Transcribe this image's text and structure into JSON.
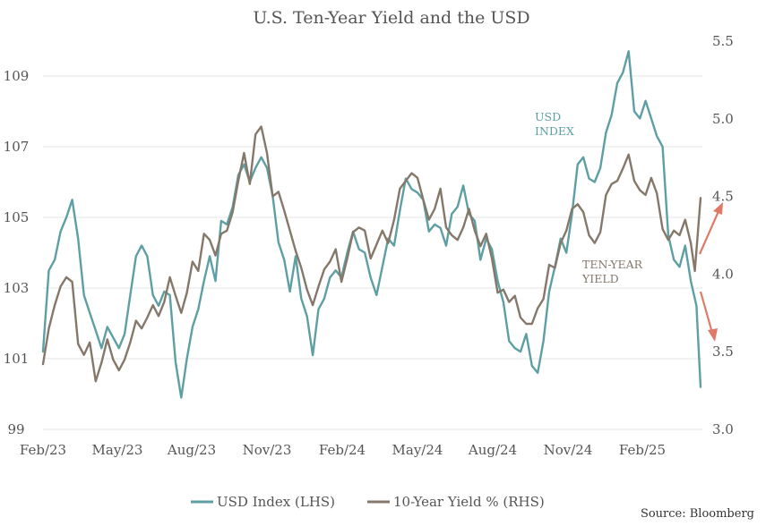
{
  "chart_data": {
    "type": "line",
    "title": "U.S. Ten-Year Yield and the USD",
    "x_ticks": [
      "Feb/23",
      "May/23",
      "Aug/23",
      "Nov/23",
      "Feb/24",
      "May/24",
      "Aug/24",
      "Nov/24",
      "Feb/25"
    ],
    "y_left": {
      "ticks": [
        "99",
        "101",
        "103",
        "105",
        "107",
        "109"
      ],
      "range": [
        99,
        110.5
      ]
    },
    "y_right": {
      "ticks": [
        "3.0",
        "3.5",
        "4.0",
        "4.5",
        "5.0",
        "5.5"
      ],
      "range": [
        3.0,
        5.6
      ]
    },
    "grid": "horizontal",
    "legend_position": "bottom",
    "series": [
      {
        "name": "USD Index (LHS)",
        "axis": "left",
        "color": "#5e9fa3",
        "points": [
          [
            "2023-02-01",
            101.2
          ],
          [
            "2023-02-08",
            103.5
          ],
          [
            "2023-02-15",
            103.8
          ],
          [
            "2023-02-22",
            104.6
          ],
          [
            "2023-03-01",
            105.0
          ],
          [
            "2023-03-08",
            105.5
          ],
          [
            "2023-03-15",
            104.4
          ],
          [
            "2023-03-22",
            102.8
          ],
          [
            "2023-03-29",
            102.3
          ],
          [
            "2023-04-05",
            101.8
          ],
          [
            "2023-04-12",
            101.3
          ],
          [
            "2023-04-19",
            101.9
          ],
          [
            "2023-04-26",
            101.6
          ],
          [
            "2023-05-03",
            101.3
          ],
          [
            "2023-05-10",
            101.7
          ],
          [
            "2023-05-17",
            102.8
          ],
          [
            "2023-05-24",
            103.9
          ],
          [
            "2023-05-31",
            104.2
          ],
          [
            "2023-06-07",
            103.9
          ],
          [
            "2023-06-14",
            102.8
          ],
          [
            "2023-06-21",
            102.5
          ],
          [
            "2023-06-28",
            102.9
          ],
          [
            "2023-07-05",
            102.8
          ],
          [
            "2023-07-12",
            100.9
          ],
          [
            "2023-07-19",
            99.9
          ],
          [
            "2023-07-26",
            101.0
          ],
          [
            "2023-08-02",
            101.9
          ],
          [
            "2023-08-09",
            102.4
          ],
          [
            "2023-08-16",
            103.2
          ],
          [
            "2023-08-23",
            103.9
          ],
          [
            "2023-08-30",
            103.2
          ],
          [
            "2023-09-06",
            104.9
          ],
          [
            "2023-09-13",
            104.8
          ],
          [
            "2023-09-20",
            105.3
          ],
          [
            "2023-09-27",
            106.2
          ],
          [
            "2023-10-04",
            106.5
          ],
          [
            "2023-10-11",
            106.0
          ],
          [
            "2023-10-18",
            106.4
          ],
          [
            "2023-10-25",
            106.7
          ],
          [
            "2023-11-01",
            106.4
          ],
          [
            "2023-11-08",
            105.6
          ],
          [
            "2023-11-15",
            104.3
          ],
          [
            "2023-11-22",
            103.8
          ],
          [
            "2023-11-29",
            102.9
          ],
          [
            "2023-12-06",
            103.9
          ],
          [
            "2023-12-13",
            102.7
          ],
          [
            "2023-12-20",
            102.2
          ],
          [
            "2023-12-27",
            101.1
          ],
          [
            "2024-01-03",
            102.4
          ],
          [
            "2024-01-10",
            102.7
          ],
          [
            "2024-01-17",
            103.3
          ],
          [
            "2024-01-24",
            103.5
          ],
          [
            "2024-01-31",
            103.3
          ],
          [
            "2024-02-07",
            104.0
          ],
          [
            "2024-02-14",
            104.6
          ],
          [
            "2024-02-21",
            104.1
          ],
          [
            "2024-02-28",
            104.0
          ],
          [
            "2024-03-06",
            103.3
          ],
          [
            "2024-03-13",
            102.8
          ],
          [
            "2024-03-20",
            103.6
          ],
          [
            "2024-03-27",
            104.4
          ],
          [
            "2024-04-03",
            104.2
          ],
          [
            "2024-04-10",
            105.2
          ],
          [
            "2024-04-17",
            106.1
          ],
          [
            "2024-04-24",
            105.8
          ],
          [
            "2024-05-01",
            105.7
          ],
          [
            "2024-05-08",
            105.5
          ],
          [
            "2024-05-15",
            104.6
          ],
          [
            "2024-05-22",
            104.8
          ],
          [
            "2024-05-29",
            104.7
          ],
          [
            "2024-06-05",
            104.2
          ],
          [
            "2024-06-12",
            105.1
          ],
          [
            "2024-06-19",
            105.3
          ],
          [
            "2024-06-26",
            105.9
          ],
          [
            "2024-07-03",
            105.1
          ],
          [
            "2024-07-10",
            104.9
          ],
          [
            "2024-07-17",
            103.8
          ],
          [
            "2024-07-24",
            104.4
          ],
          [
            "2024-07-31",
            104.1
          ],
          [
            "2024-08-07",
            103.2
          ],
          [
            "2024-08-14",
            102.6
          ],
          [
            "2024-08-21",
            101.5
          ],
          [
            "2024-08-28",
            101.3
          ],
          [
            "2024-09-04",
            101.2
          ],
          [
            "2024-09-11",
            101.7
          ],
          [
            "2024-09-18",
            100.8
          ],
          [
            "2024-09-25",
            100.6
          ],
          [
            "2024-10-02",
            101.5
          ],
          [
            "2024-10-09",
            102.9
          ],
          [
            "2024-10-16",
            103.6
          ],
          [
            "2024-10-23",
            104.4
          ],
          [
            "2024-10-30",
            104.0
          ],
          [
            "2024-11-06",
            105.1
          ],
          [
            "2024-11-13",
            106.5
          ],
          [
            "2024-11-20",
            106.7
          ],
          [
            "2024-11-27",
            106.1
          ],
          [
            "2024-12-04",
            106.0
          ],
          [
            "2024-12-11",
            106.4
          ],
          [
            "2024-12-18",
            107.4
          ],
          [
            "2024-12-25",
            107.9
          ],
          [
            "2025-01-01",
            108.8
          ],
          [
            "2025-01-08",
            109.1
          ],
          [
            "2025-01-15",
            109.7
          ],
          [
            "2025-01-22",
            108.0
          ],
          [
            "2025-01-29",
            107.8
          ],
          [
            "2025-02-05",
            108.3
          ],
          [
            "2025-02-12",
            107.8
          ],
          [
            "2025-02-19",
            107.3
          ],
          [
            "2025-02-26",
            107.0
          ],
          [
            "2025-03-05",
            104.5
          ],
          [
            "2025-03-12",
            103.8
          ],
          [
            "2025-03-19",
            103.6
          ],
          [
            "2025-03-26",
            104.2
          ],
          [
            "2025-04-02",
            103.2
          ],
          [
            "2025-04-09",
            102.5
          ],
          [
            "2025-04-14",
            100.2
          ]
        ]
      },
      {
        "name": "10-Year Yield % (RHS)",
        "axis": "right",
        "color": "#85786a",
        "points": [
          [
            "2023-02-01",
            3.42
          ],
          [
            "2023-02-08",
            3.65
          ],
          [
            "2023-02-15",
            3.8
          ],
          [
            "2023-02-22",
            3.92
          ],
          [
            "2023-03-01",
            3.98
          ],
          [
            "2023-03-08",
            3.95
          ],
          [
            "2023-03-15",
            3.55
          ],
          [
            "2023-03-22",
            3.48
          ],
          [
            "2023-03-29",
            3.56
          ],
          [
            "2023-04-05",
            3.31
          ],
          [
            "2023-04-12",
            3.43
          ],
          [
            "2023-04-19",
            3.58
          ],
          [
            "2023-04-26",
            3.45
          ],
          [
            "2023-05-03",
            3.38
          ],
          [
            "2023-05-10",
            3.45
          ],
          [
            "2023-05-17",
            3.56
          ],
          [
            "2023-05-24",
            3.7
          ],
          [
            "2023-05-31",
            3.65
          ],
          [
            "2023-06-07",
            3.72
          ],
          [
            "2023-06-14",
            3.8
          ],
          [
            "2023-06-21",
            3.73
          ],
          [
            "2023-06-28",
            3.82
          ],
          [
            "2023-07-05",
            3.98
          ],
          [
            "2023-07-12",
            3.86
          ],
          [
            "2023-07-19",
            3.75
          ],
          [
            "2023-07-26",
            3.88
          ],
          [
            "2023-08-02",
            4.08
          ],
          [
            "2023-08-09",
            4.02
          ],
          [
            "2023-08-16",
            4.26
          ],
          [
            "2023-08-23",
            4.22
          ],
          [
            "2023-08-30",
            4.12
          ],
          [
            "2023-09-06",
            4.26
          ],
          [
            "2023-09-13",
            4.28
          ],
          [
            "2023-09-20",
            4.4
          ],
          [
            "2023-09-27",
            4.6
          ],
          [
            "2023-10-04",
            4.78
          ],
          [
            "2023-10-11",
            4.58
          ],
          [
            "2023-10-18",
            4.9
          ],
          [
            "2023-10-25",
            4.95
          ],
          [
            "2023-11-01",
            4.78
          ],
          [
            "2023-11-08",
            4.5
          ],
          [
            "2023-11-15",
            4.53
          ],
          [
            "2023-11-22",
            4.41
          ],
          [
            "2023-11-29",
            4.28
          ],
          [
            "2023-12-06",
            4.15
          ],
          [
            "2023-12-13",
            4.04
          ],
          [
            "2023-12-20",
            3.9
          ],
          [
            "2023-12-27",
            3.8
          ],
          [
            "2024-01-03",
            3.92
          ],
          [
            "2024-01-10",
            4.03
          ],
          [
            "2024-01-17",
            4.08
          ],
          [
            "2024-01-24",
            4.16
          ],
          [
            "2024-01-31",
            3.95
          ],
          [
            "2024-02-07",
            4.1
          ],
          [
            "2024-02-14",
            4.27
          ],
          [
            "2024-02-21",
            4.3
          ],
          [
            "2024-02-28",
            4.28
          ],
          [
            "2024-03-06",
            4.1
          ],
          [
            "2024-03-13",
            4.19
          ],
          [
            "2024-03-20",
            4.28
          ],
          [
            "2024-03-27",
            4.2
          ],
          [
            "2024-04-03",
            4.35
          ],
          [
            "2024-04-10",
            4.55
          ],
          [
            "2024-04-17",
            4.6
          ],
          [
            "2024-04-24",
            4.65
          ],
          [
            "2024-05-01",
            4.62
          ],
          [
            "2024-05-08",
            4.48
          ],
          [
            "2024-05-15",
            4.35
          ],
          [
            "2024-05-22",
            4.42
          ],
          [
            "2024-05-29",
            4.55
          ],
          [
            "2024-06-05",
            4.3
          ],
          [
            "2024-06-12",
            4.25
          ],
          [
            "2024-06-19",
            4.22
          ],
          [
            "2024-06-26",
            4.3
          ],
          [
            "2024-07-03",
            4.42
          ],
          [
            "2024-07-10",
            4.28
          ],
          [
            "2024-07-17",
            4.18
          ],
          [
            "2024-07-24",
            4.26
          ],
          [
            "2024-07-31",
            4.1
          ],
          [
            "2024-08-07",
            3.88
          ],
          [
            "2024-08-14",
            3.9
          ],
          [
            "2024-08-21",
            3.82
          ],
          [
            "2024-08-28",
            3.86
          ],
          [
            "2024-09-04",
            3.72
          ],
          [
            "2024-09-11",
            3.68
          ],
          [
            "2024-09-18",
            3.68
          ],
          [
            "2024-09-25",
            3.78
          ],
          [
            "2024-10-02",
            3.84
          ],
          [
            "2024-10-09",
            4.06
          ],
          [
            "2024-10-16",
            4.04
          ],
          [
            "2024-10-23",
            4.2
          ],
          [
            "2024-10-30",
            4.28
          ],
          [
            "2024-11-06",
            4.42
          ],
          [
            "2024-11-13",
            4.45
          ],
          [
            "2024-11-20",
            4.4
          ],
          [
            "2024-11-27",
            4.25
          ],
          [
            "2024-12-04",
            4.2
          ],
          [
            "2024-12-11",
            4.27
          ],
          [
            "2024-12-18",
            4.51
          ],
          [
            "2024-12-25",
            4.58
          ],
          [
            "2025-01-01",
            4.6
          ],
          [
            "2025-01-08",
            4.68
          ],
          [
            "2025-01-15",
            4.77
          ],
          [
            "2025-01-22",
            4.6
          ],
          [
            "2025-01-29",
            4.54
          ],
          [
            "2025-02-05",
            4.51
          ],
          [
            "2025-02-12",
            4.62
          ],
          [
            "2025-02-19",
            4.52
          ],
          [
            "2025-02-26",
            4.29
          ],
          [
            "2025-03-05",
            4.22
          ],
          [
            "2025-03-12",
            4.28
          ],
          [
            "2025-03-19",
            4.25
          ],
          [
            "2025-03-26",
            4.35
          ],
          [
            "2025-04-02",
            4.2
          ],
          [
            "2025-04-07",
            4.02
          ],
          [
            "2025-04-14",
            4.49
          ]
        ]
      }
    ],
    "annotations": [
      {
        "text": [
          "USD",
          "INDEX"
        ],
        "color": "#5e9fa3"
      },
      {
        "text": [
          "TEN-YEAR",
          "YIELD"
        ],
        "color": "#85786a"
      }
    ],
    "arrows_color": "#e07a68"
  },
  "source": "Source: Bloomberg"
}
